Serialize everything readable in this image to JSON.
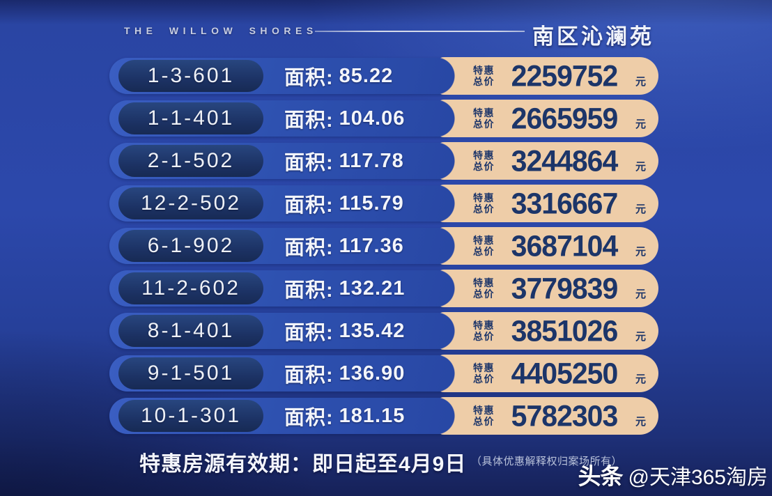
{
  "header": {
    "brand": "THE WILLOW SHORES",
    "estate": "南区沁澜苑"
  },
  "table": {
    "area_label": "面积:",
    "price_label_top": "特惠",
    "price_label_bottom": "总价",
    "currency": "元",
    "rows": [
      {
        "unit": "1-3-601",
        "area": "85.22",
        "price": "2259752"
      },
      {
        "unit": "1-1-401",
        "area": "104.06",
        "price": "2665959"
      },
      {
        "unit": "2-1-502",
        "area": "117.78",
        "price": "3244864"
      },
      {
        "unit": "12-2-502",
        "area": "115.79",
        "price": "3316667"
      },
      {
        "unit": "6-1-902",
        "area": "117.36",
        "price": "3687104"
      },
      {
        "unit": "11-2-602",
        "area": "132.21",
        "price": "3779839"
      },
      {
        "unit": "8-1-401",
        "area": "135.42",
        "price": "3851026"
      },
      {
        "unit": "9-1-501",
        "area": "136.90",
        "price": "4405250"
      },
      {
        "unit": "10-1-301",
        "area": "181.15",
        "price": "5782303"
      }
    ]
  },
  "footer": {
    "validity": "特惠房源有效期：即日起至4月9日",
    "note": "（具体优惠解释权归案场所有）"
  },
  "watermark": {
    "logo": "头条",
    "handle": "@天津365淘房"
  },
  "colors": {
    "background": "#2b47a9",
    "row_band": "#3a5ec2",
    "unit_pill": "#1c3264",
    "price_pill": "#eecda8",
    "price_text": "#1c3569",
    "text": "#f3f5fb"
  }
}
